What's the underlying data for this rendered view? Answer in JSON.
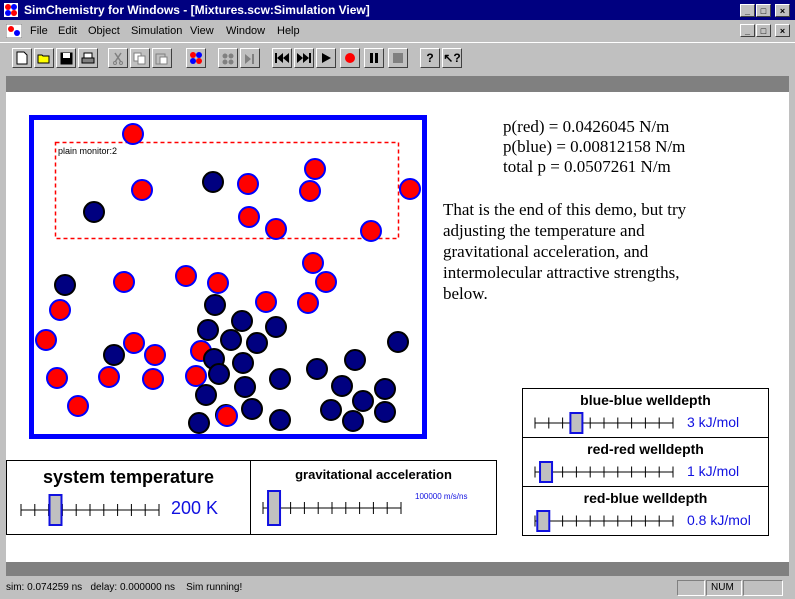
{
  "window": {
    "title": "SimChemistry for Windows - [Mixtures.scw:Simulation View]",
    "minimize": "_",
    "maximize": "□",
    "close": "×"
  },
  "menu": [
    "File",
    "Edit",
    "Object",
    "Simulation",
    "View",
    "Window",
    "Help"
  ],
  "toolbar": {
    "icons": [
      "new-icon",
      "open-icon",
      "save-icon",
      "print-icon",
      "cut-icon",
      "copy-icon",
      "paste-icon",
      "molecule-icon",
      "atoms-icon",
      "step-icon",
      "rewind-icon",
      "fast-forward-icon",
      "play-icon",
      "record-icon",
      "pause-icon",
      "stop-icon",
      "help-icon",
      "context-help-icon"
    ]
  },
  "simulation": {
    "monitor_label": "plain monitor:2",
    "colors": {
      "red": "#ff0000",
      "blue": "#0000ff",
      "navy": "#000080",
      "box": "#0000ff",
      "monitor": "#ff0000"
    }
  },
  "pressure": {
    "red": "p(red) = 0.0426045 N/m",
    "blue": "p(blue) = 0.00812158 N/m",
    "total": "total p = 0.0507261 N/m"
  },
  "message": [
    "That is the end of this demo, but try",
    "adjusting the temperature and",
    "gravitational acceleration, and",
    "intermolecular attractive strengths,",
    "below."
  ],
  "controls": {
    "temperature": {
      "label": "system temperature",
      "value": "200 K",
      "level": 0.25
    },
    "gravity": {
      "label": "gravitational acceleration",
      "value": "100000 m/s/ns",
      "level": 0.08
    },
    "blue_blue": {
      "label": "blue-blue welldepth",
      "value": "3 kJ/mol",
      "level": 0.3
    },
    "red_red": {
      "label": "red-red welldepth",
      "value": "1 kJ/mol",
      "level": 0.08
    },
    "red_blue": {
      "label": "red-blue welldepth",
      "value": "0.8 kJ/mol",
      "level": 0.06
    }
  },
  "status": {
    "text": "sim: 0.074259 ns   delay: 0.000000 ns    Sim running!",
    "num": "NUM"
  }
}
